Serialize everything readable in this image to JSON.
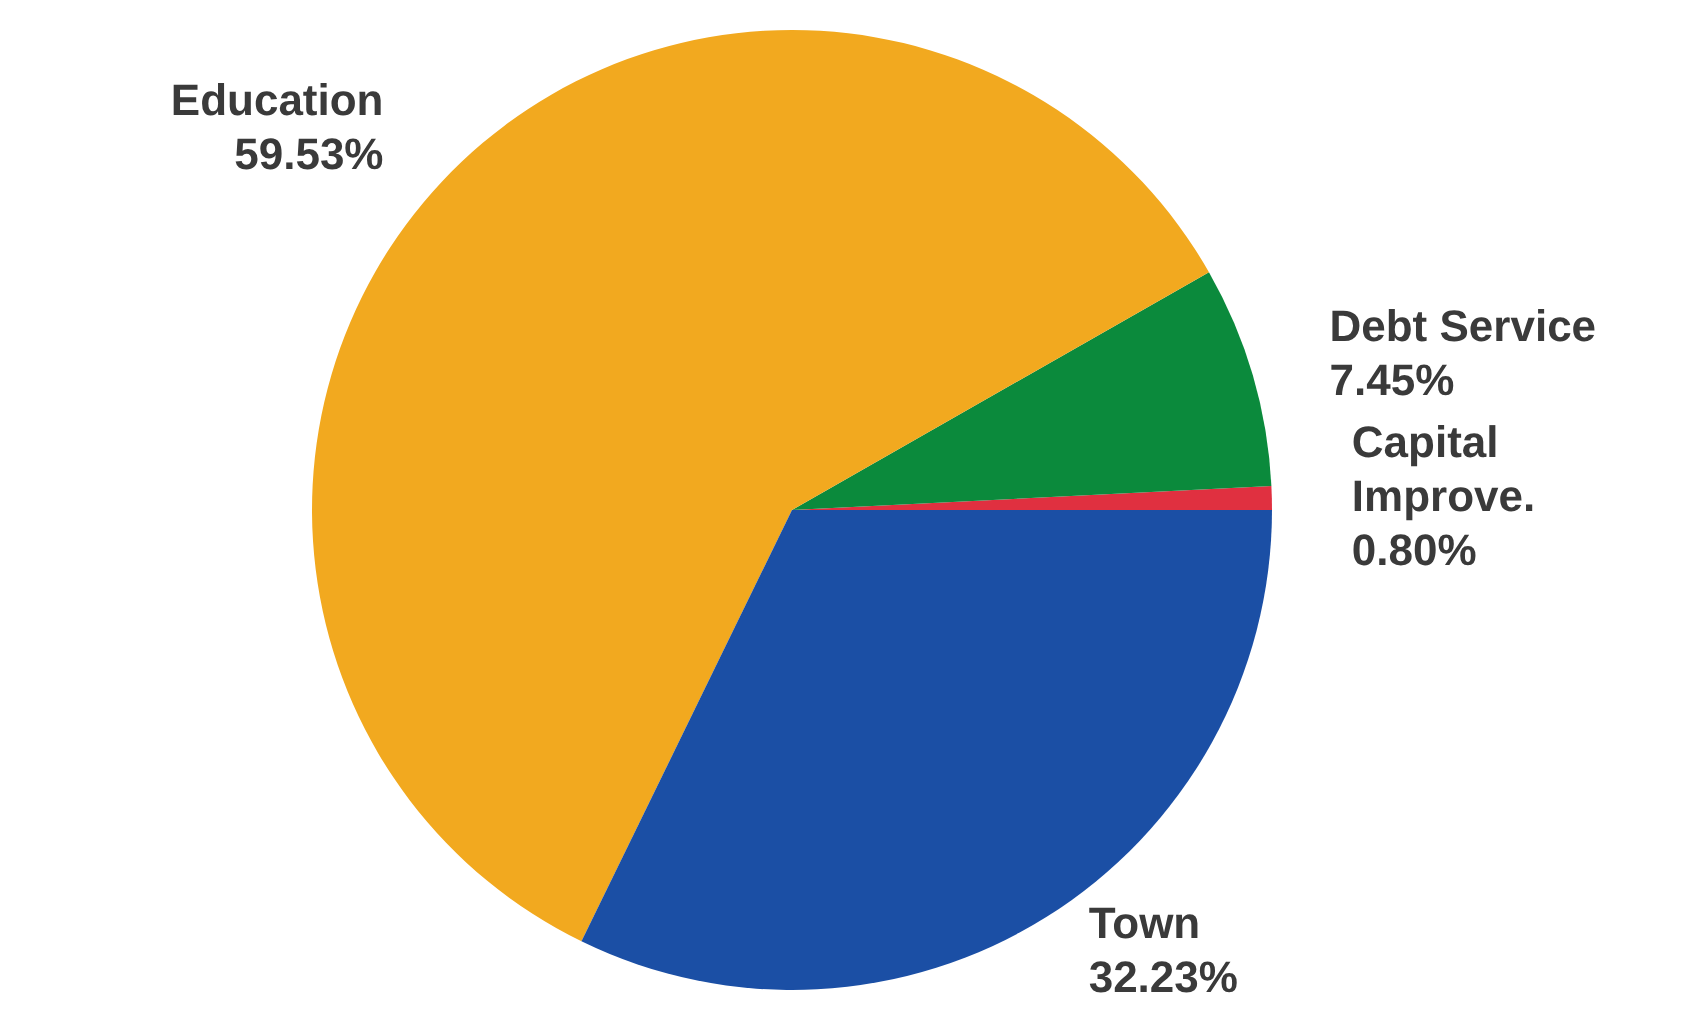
{
  "chart_data": {
    "type": "pie",
    "categories": [
      "Capital Improve.",
      "Debt Service",
      "Education",
      "Town"
    ],
    "values": [
      0.8,
      7.45,
      59.53,
      32.23
    ],
    "value_labels": [
      "0.80%",
      "7.45%",
      "59.53%",
      "32.23%"
    ],
    "colors": [
      "#e03040",
      "#0b8a3c",
      "#f2a91f",
      "#1b4fa5"
    ]
  }
}
